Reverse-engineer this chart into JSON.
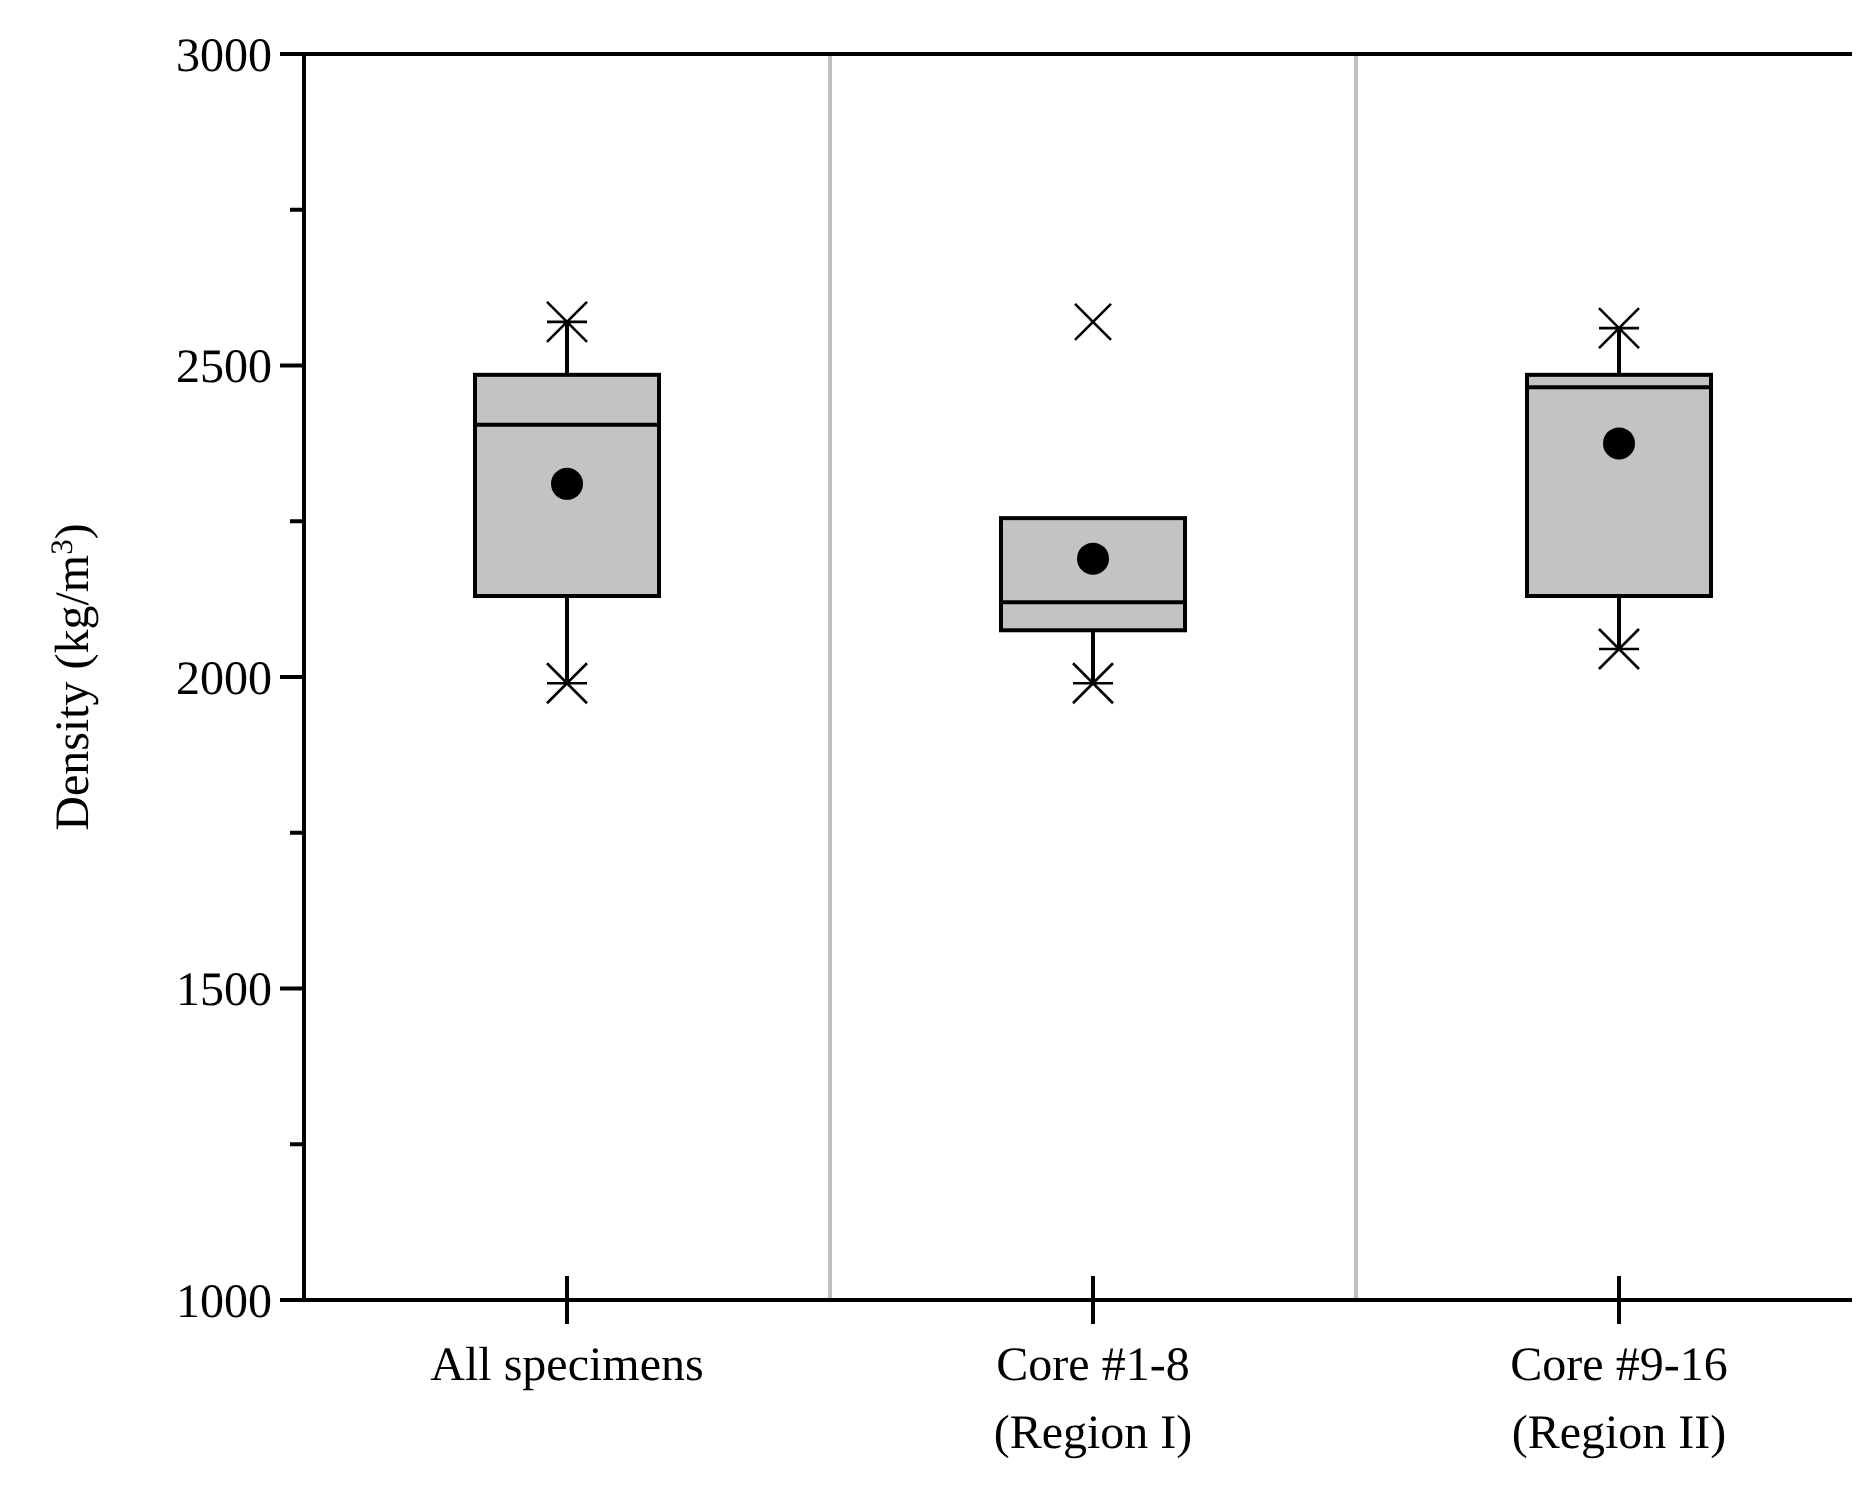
{
  "chart_data": {
    "type": "box",
    "ylabel": "Density (kg/m$^{3}$)",
    "categories": [
      "All specimens",
      "Core #1-8\n(Region I)",
      "Core #9-16\n(Region II)"
    ],
    "boxes": [
      {
        "low": 1990,
        "q1": 2130,
        "median": 2405,
        "q3": 2485,
        "high": 2570,
        "mean": 2310
      },
      {
        "low": 1990,
        "q1": 2075,
        "median": 2120,
        "q3": 2255,
        "high": 2255,
        "mean": 2190,
        "outliers": [
          2570
        ]
      },
      {
        "low": 2045,
        "q1": 2130,
        "median": 2465,
        "q3": 2485,
        "high": 2560,
        "mean": 2375
      }
    ],
    "color": "#c3c3c3",
    "ylim": [
      1000,
      3000
    ],
    "yticks": [
      1000,
      {
        "value": 1250,
        "label": null
      },
      1500,
      {
        "value": 1750,
        "label": null
      },
      2000,
      {
        "value": 2250,
        "label": null
      },
      2500,
      {
        "value": 2750,
        "label": null
      },
      3000
    ],
    "grid": false
  }
}
